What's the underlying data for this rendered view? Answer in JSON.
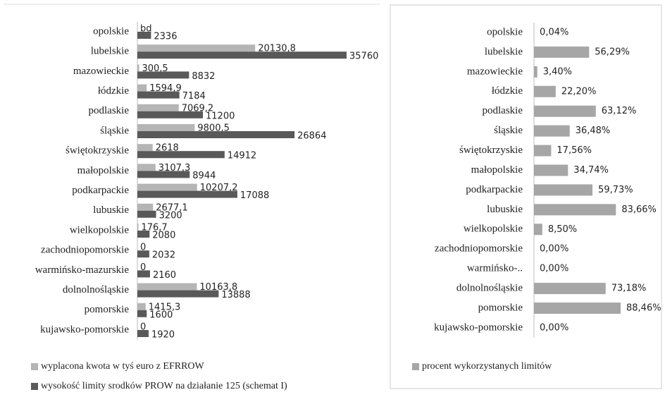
{
  "chart_data": [
    {
      "type": "bar",
      "categories": [
        "opolskie",
        "lubelskie",
        "mazowieckie",
        "łódzkie",
        "podlaskie",
        "śląskie",
        "świętokrzyskie",
        "małopolskie",
        "podkarpackie",
        "lubuskie",
        "wielkopolskie",
        "zachodniopomorskie",
        "warmińsko-mazurskie",
        "dolnolnośląskie",
        "pomorskie",
        "kujawsko-pomorskie"
      ],
      "series": [
        {
          "name": "wyplacona kwota w tyś euro z EFRROW",
          "color": "#b5b5b5",
          "values": [
            null,
            20130.8,
            300.5,
            1594.9,
            7069.2,
            9800.5,
            2618,
            3107.3,
            10207.2,
            2677.1,
            176.7,
            0,
            0,
            10163.8,
            1415.3,
            0
          ],
          "value_labels": [
            "bd",
            "20130,8",
            "300,5",
            "1594,9",
            "7069,2",
            "9800,5",
            "2618",
            "3107,3",
            "10207,2",
            "2677,1",
            "176,7",
            "0",
            "0",
            "10163,8",
            "1415,3",
            "0"
          ]
        },
        {
          "name": "wysokość limity srodków PROW na działanie 125 (schemat I)",
          "color": "#595959",
          "values": [
            2336,
            35760,
            8832,
            7184,
            11200,
            26864,
            14912,
            8944,
            17088,
            3200,
            2080,
            2032,
            2160,
            13888,
            1600,
            1920
          ],
          "value_labels": [
            "2336",
            "35760",
            "8832",
            "7184",
            "11200",
            "26864",
            "14912",
            "8944",
            "17088",
            "3200",
            "2080",
            "2032",
            "2160",
            "13888",
            "1600",
            "1920"
          ]
        }
      ]
    },
    {
      "type": "bar",
      "categories": [
        "opolskie",
        "lubelskie",
        "mazowieckie",
        "łódzkie",
        "podlaskie",
        "śląskie",
        "świętokrzyskie",
        "małopolskie",
        "podkarpackie",
        "lubuskie",
        "wielkopolskie",
        "zachodniopomorskie",
        "warmińsko-..",
        "dolnolnośląskie",
        "pomorskie",
        "kujawsko-pomorskie"
      ],
      "series": [
        {
          "name": "procent wykorzystanych limitów",
          "color": "#a6a6a6",
          "values": [
            0.04,
            56.29,
            3.4,
            22.2,
            63.12,
            36.48,
            17.56,
            34.74,
            59.73,
            83.66,
            8.5,
            0,
            0,
            73.18,
            88.46,
            0
          ],
          "value_labels": [
            "0,04%",
            "56,29%",
            "3,40%",
            "22,20%",
            "63,12%",
            "36,48%",
            "17,56%",
            "34,74%",
            "59,73%",
            "83,66%",
            "8,50%",
            "0,00%",
            "0,00%",
            "73,18%",
            "88,46%",
            "0,00%"
          ]
        }
      ]
    }
  ]
}
